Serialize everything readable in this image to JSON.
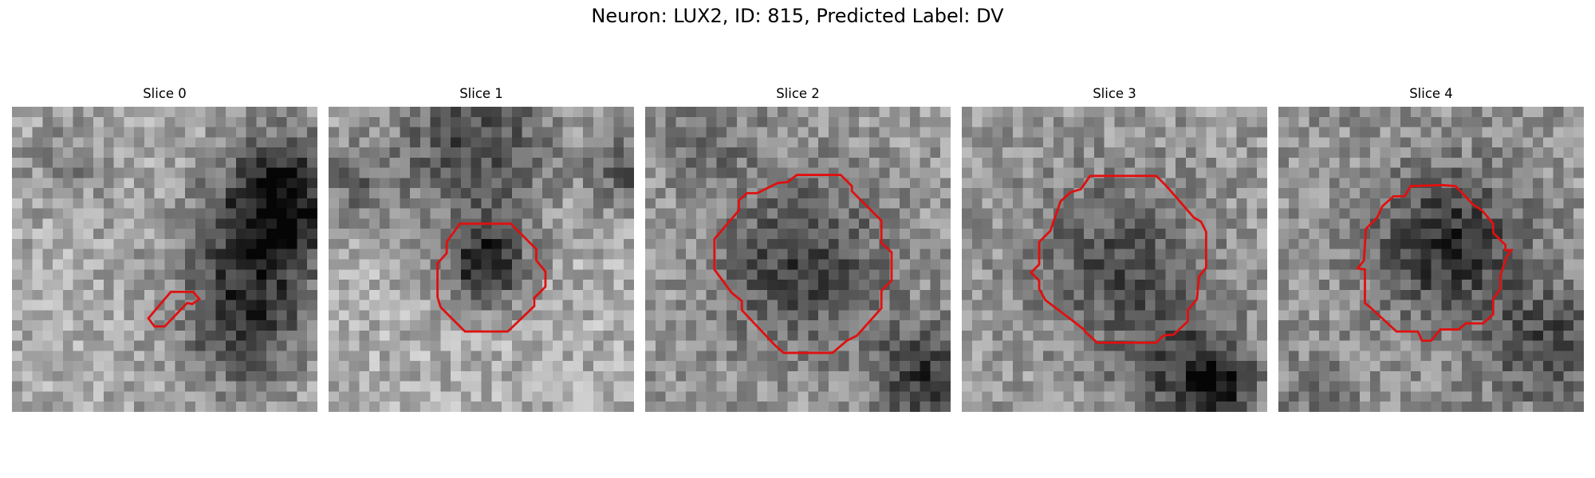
{
  "figure": {
    "title": "Neuron: LUX2, ID: 815, Predicted Label: DV"
  },
  "colors": {
    "contour": "#e01010",
    "background": "#ffffff"
  },
  "panels": [
    {
      "title": "Slice 0",
      "seed": 11,
      "contour_shape": "small-angled-sliver"
    },
    {
      "title": "Slice 1",
      "seed": 23,
      "contour_shape": "small-octagon"
    },
    {
      "title": "Slice 2",
      "seed": 37,
      "contour_shape": "large-octagon"
    },
    {
      "title": "Slice 3",
      "seed": 51,
      "contour_shape": "large-polygon"
    },
    {
      "title": "Slice 4",
      "seed": 67,
      "contour_shape": "medium-polygon"
    }
  ]
}
